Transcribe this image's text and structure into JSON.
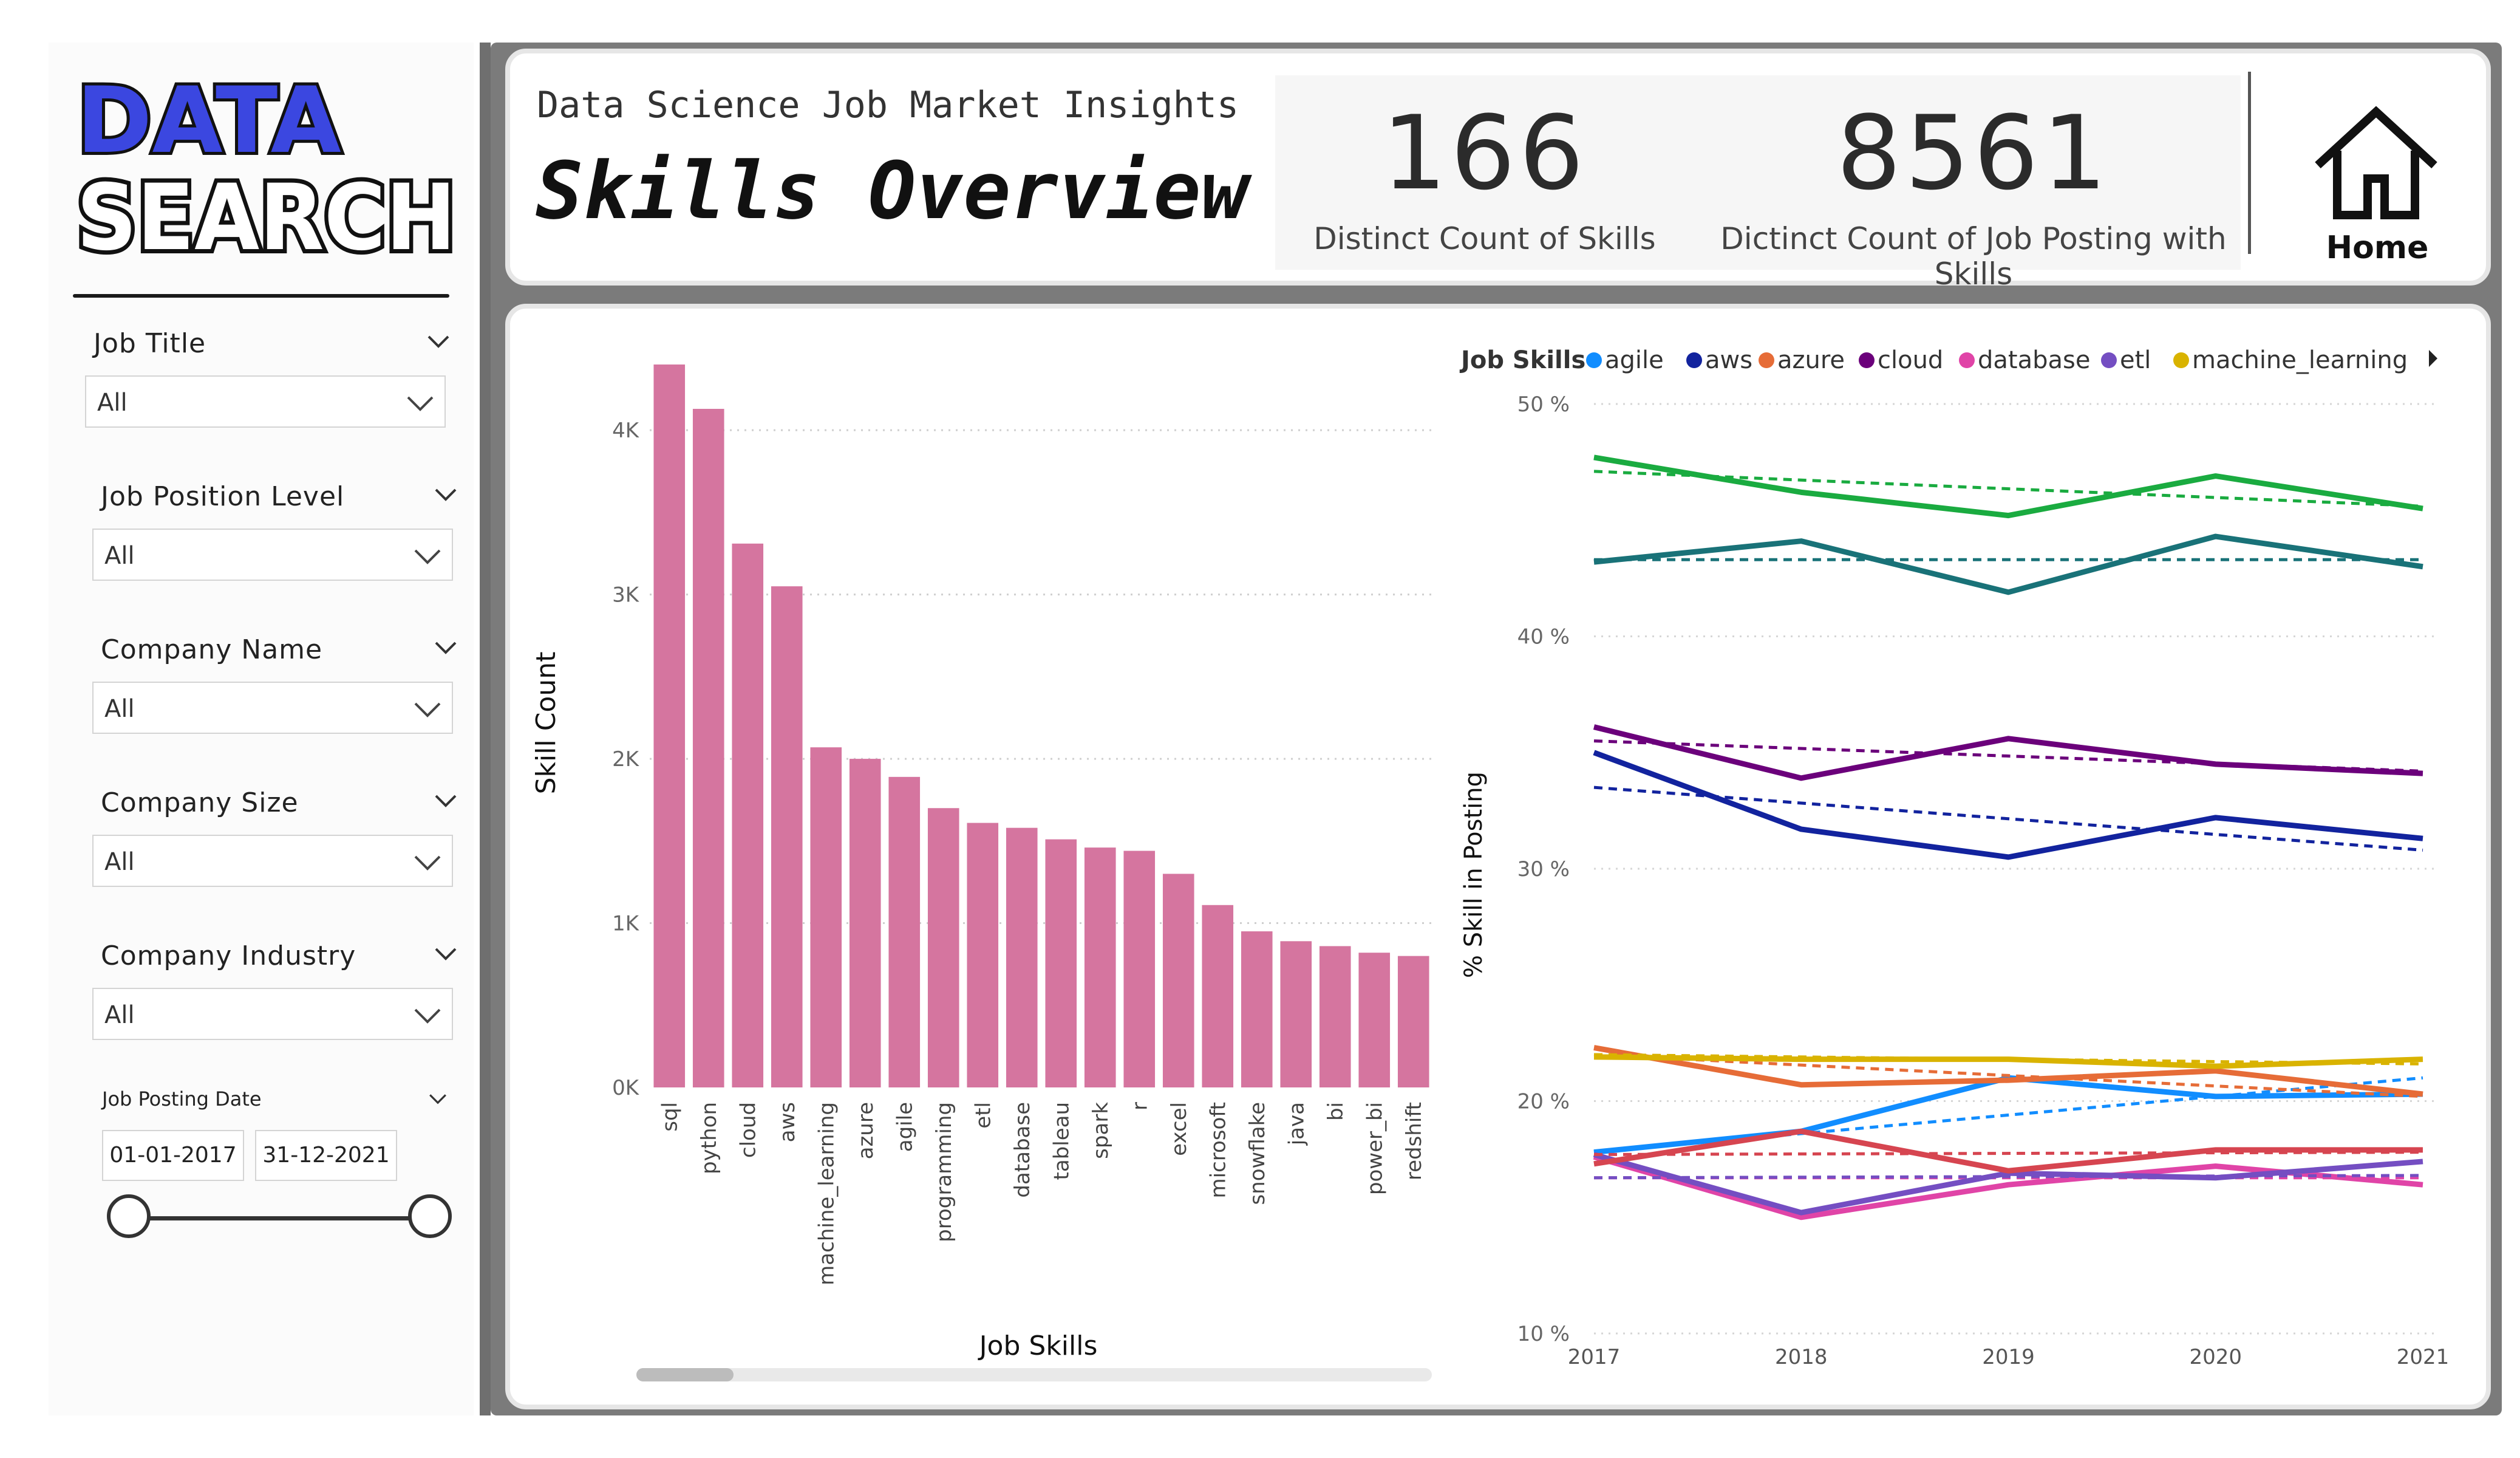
{
  "logo": {
    "line1": "DATA",
    "line2": "SEARCH"
  },
  "filters": [
    {
      "label": "Job Title",
      "value": "All"
    },
    {
      "label": "Job Position Level",
      "value": "All"
    },
    {
      "label": "Company Name",
      "value": "All"
    },
    {
      "label": "Company Size",
      "value": "All"
    },
    {
      "label": "Company Industry",
      "value": "All"
    }
  ],
  "date_filter": {
    "label": "Job Posting Date",
    "start": "01-01-2017",
    "end": "31-12-2021"
  },
  "header": {
    "subtitle": "Data Science Job Market Insights",
    "title": "Skills Overview"
  },
  "kpis": [
    {
      "value": "166",
      "label": "Distinct Count of Skills"
    },
    {
      "value": "8561",
      "label": "Dictinct Count of Job Posting with Skills"
    }
  ],
  "nav": {
    "home_label": "Home",
    "home_icon": "home-icon"
  },
  "colors": {
    "bar": "#d5759f",
    "frame": "#7b7b7b"
  },
  "chart_data": [
    {
      "type": "bar",
      "title": "",
      "xlabel": "Job Skills",
      "ylabel": "Skill Count",
      "ylim": [
        0,
        4400
      ],
      "yticks": [
        {
          "v": 0,
          "label": "0K"
        },
        {
          "v": 1000,
          "label": "1K"
        },
        {
          "v": 2000,
          "label": "2K"
        },
        {
          "v": 3000,
          "label": "3K"
        },
        {
          "v": 4000,
          "label": "4K"
        }
      ],
      "categories": [
        "sql",
        "python",
        "cloud",
        "aws",
        "machine_learning",
        "azure",
        "agile",
        "programming",
        "etl",
        "database",
        "tableau",
        "spark",
        "r",
        "excel",
        "microsoft",
        "snowflake",
        "java",
        "bi",
        "power_bi",
        "redshift"
      ],
      "values": [
        4400,
        4130,
        3310,
        3050,
        2070,
        2000,
        1890,
        1700,
        1610,
        1580,
        1510,
        1460,
        1440,
        1300,
        1110,
        950,
        890,
        860,
        820,
        800
      ],
      "grid": true
    },
    {
      "type": "line",
      "legend_title": "Job Skills",
      "legend_position": "top",
      "ylabel": "% Skill in Posting",
      "xlabel": "",
      "x": [
        2017,
        2018,
        2019,
        2020,
        2021
      ],
      "ylim": [
        10,
        50
      ],
      "yticks": [
        {
          "v": 10,
          "label": "10 %"
        },
        {
          "v": 20,
          "label": "20 %"
        },
        {
          "v": 30,
          "label": "30 %"
        },
        {
          "v": 40,
          "label": "40 %"
        },
        {
          "v": 50,
          "label": "50 %"
        }
      ],
      "trend_lines": "dashed",
      "series": [
        {
          "name": "agile",
          "color": "#118dff",
          "values": [
            17.8,
            18.7,
            21.0,
            20.2,
            20.3
          ],
          "trend": [
            17.8,
            21.0
          ],
          "legend": true
        },
        {
          "name": "aws",
          "color": "#12239e",
          "values": [
            35.0,
            31.7,
            30.5,
            32.2,
            31.3
          ],
          "trend": [
            33.5,
            30.8
          ],
          "legend": true
        },
        {
          "name": "azure",
          "color": "#e66c37",
          "values": [
            22.3,
            20.7,
            20.9,
            21.3,
            20.3
          ],
          "trend": [
            22.0,
            20.2
          ],
          "legend": true
        },
        {
          "name": "cloud",
          "color": "#6b007b",
          "values": [
            36.1,
            33.9,
            35.6,
            34.5,
            34.1
          ],
          "trend": [
            35.5,
            34.2
          ],
          "legend": true
        },
        {
          "name": "database",
          "color": "#e044a7",
          "values": [
            17.6,
            15.0,
            16.4,
            17.2,
            16.4
          ],
          "trend": [
            16.7,
            16.7
          ],
          "legend": true
        },
        {
          "name": "etl",
          "color": "#744ec2",
          "values": [
            17.7,
            15.2,
            16.9,
            16.7,
            17.4
          ],
          "trend": [
            16.7,
            16.8
          ],
          "legend": true
        },
        {
          "name": "machine_learning",
          "color": "#d9b300",
          "values": [
            21.9,
            21.8,
            21.8,
            21.5,
            21.8
          ],
          "trend": [
            22.0,
            21.6
          ],
          "legend": true
        },
        {
          "name": "",
          "color": "#1aab40",
          "values": [
            47.7,
            46.2,
            45.2,
            46.9,
            45.5
          ],
          "trend": [
            47.1,
            45.6
          ],
          "legend": false
        },
        {
          "name": "",
          "color": "#197278",
          "values": [
            43.2,
            44.1,
            41.9,
            44.3,
            43.0
          ],
          "trend": [
            43.3,
            43.3
          ],
          "legend": false
        },
        {
          "name": "",
          "color": "#d64550",
          "values": [
            17.3,
            18.7,
            17.0,
            17.9,
            17.9
          ],
          "trend": [
            17.7,
            17.8
          ],
          "legend": false
        }
      ],
      "grid": true
    }
  ]
}
